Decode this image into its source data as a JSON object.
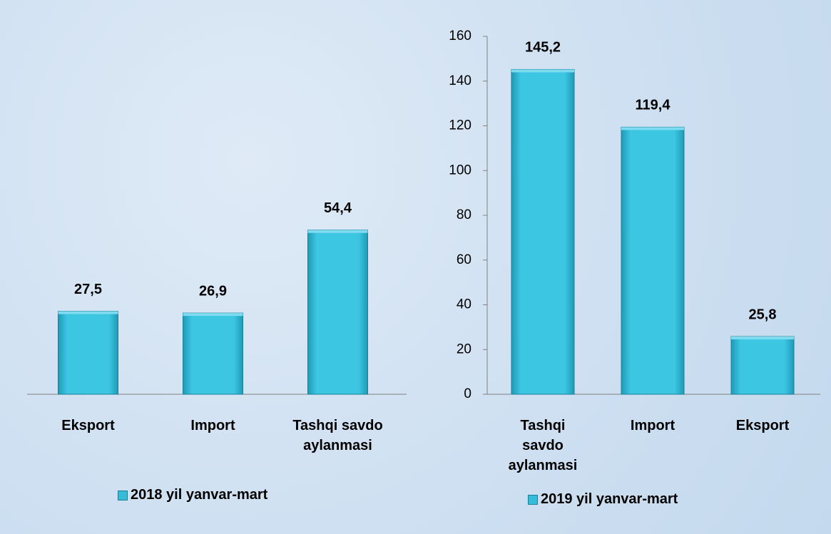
{
  "chart_data": [
    {
      "type": "bar",
      "categories": [
        "Eksport",
        "Import",
        "Tashqi savdo aylanmasi"
      ],
      "series": [
        {
          "name": "2018 yil yanvar-mart",
          "color": "#35bcd9",
          "values": [
            27.5,
            26.9,
            54.4
          ],
          "value_labels": [
            "27,5",
            "26,9",
            "54,4"
          ]
        }
      ],
      "ylim": [
        0,
        120
      ]
    },
    {
      "type": "bar",
      "categories": [
        "Tashqi savdo aylanmasi",
        "Import",
        "Eksport"
      ],
      "series": [
        {
          "name": "2019 yil yanvar-mart",
          "color": "#35bcd9",
          "values": [
            145.2,
            119.4,
            25.8
          ],
          "value_labels": [
            "145,2",
            "119,4",
            "25,8"
          ]
        }
      ],
      "ylim": [
        0,
        160
      ],
      "yticks": [
        0,
        20,
        40,
        60,
        80,
        100,
        120,
        140,
        160
      ]
    }
  ]
}
